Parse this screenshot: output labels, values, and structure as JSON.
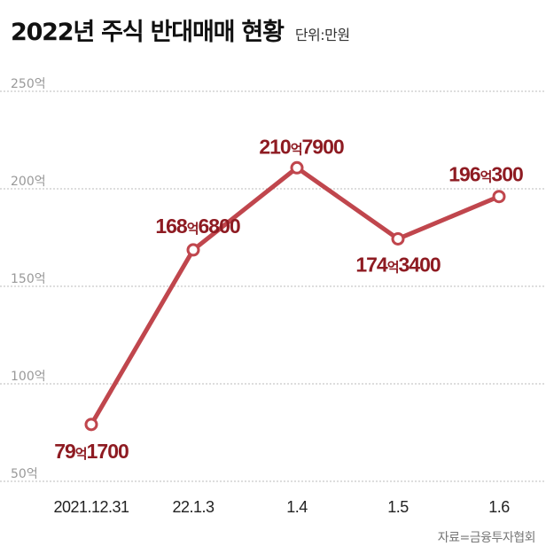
{
  "header": {
    "title": "2022년 주식 반대매매 현황",
    "unit": "단위:만원"
  },
  "source": "자료=금융투자협회",
  "colors": {
    "line": "#c0464d",
    "label": "#8e1b22",
    "grid": "#bbbbbb"
  },
  "chart_data": {
    "type": "line",
    "categories": [
      "2021.12.31",
      "22.1.3",
      "1.4",
      "1.5",
      "1.6"
    ],
    "values": [
      791700,
      1686800,
      2107900,
      1743400,
      1960300
    ],
    "data_labels": [
      {
        "major": "79",
        "unit": "억",
        "minor": "1700"
      },
      {
        "major": "168",
        "unit": "억",
        "minor": "6800"
      },
      {
        "major": "210",
        "unit": "억",
        "minor": "7900"
      },
      {
        "major": "174",
        "unit": "억",
        "minor": "3400"
      },
      {
        "major": "196",
        "unit": "억",
        "minor": "300"
      }
    ],
    "y_ticks": [
      {
        "value": 500000,
        "label": "50억"
      },
      {
        "value": 1000000,
        "label": "100억"
      },
      {
        "value": 1500000,
        "label": "150억"
      },
      {
        "value": 2000000,
        "label": "200억"
      },
      {
        "value": 2500000,
        "label": "250억"
      }
    ],
    "ylim": [
      500000,
      2500000
    ],
    "grid": true,
    "legend": "none"
  }
}
